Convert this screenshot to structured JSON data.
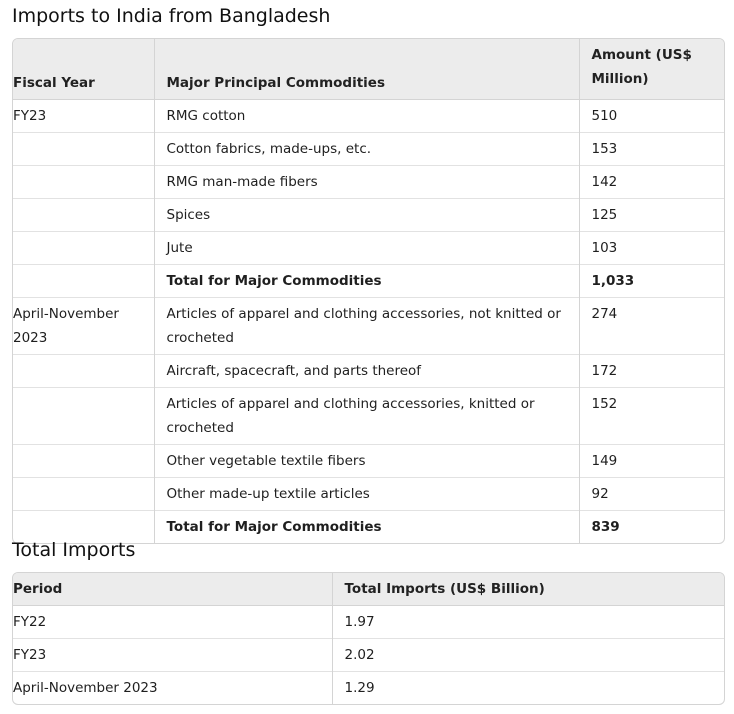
{
  "imports_section": {
    "title": "Imports to India from Bangladesh",
    "headers": [
      "Fiscal Year",
      "Major Principal Commodities",
      "Amount (US$ Million)"
    ],
    "rows": [
      {
        "year": "FY23",
        "commodity": "RMG cotton",
        "amount": "510",
        "total": false
      },
      {
        "year": "",
        "commodity": "Cotton fabrics, made-ups, etc.",
        "amount": "153",
        "total": false
      },
      {
        "year": "",
        "commodity": "RMG man-made fibers",
        "amount": "142",
        "total": false
      },
      {
        "year": "",
        "commodity": "Spices",
        "amount": "125",
        "total": false
      },
      {
        "year": "",
        "commodity": "Jute",
        "amount": "103",
        "total": false
      },
      {
        "year": "",
        "commodity": "Total for Major Commodities",
        "amount": "1,033",
        "total": true
      },
      {
        "year": "April-November 2023",
        "commodity": "Articles of apparel and clothing accessories, not knitted or crocheted",
        "amount": "274",
        "total": false
      },
      {
        "year": "",
        "commodity": "Aircraft, spacecraft, and parts thereof",
        "amount": "172",
        "total": false
      },
      {
        "year": "",
        "commodity": "Articles of apparel and clothing accessories, knitted or crocheted",
        "amount": "152",
        "total": false
      },
      {
        "year": "",
        "commodity": "Other vegetable textile fibers",
        "amount": "149",
        "total": false
      },
      {
        "year": "",
        "commodity": "Other made-up textile articles",
        "amount": "92",
        "total": false
      },
      {
        "year": "",
        "commodity": "Total for Major Commodities",
        "amount": "839",
        "total": true
      }
    ]
  },
  "total_section": {
    "title": "Total Imports",
    "headers": [
      "Period",
      "Total Imports (US$ Billion)"
    ],
    "rows": [
      {
        "period": "FY22",
        "total": "1.97"
      },
      {
        "period": "FY23",
        "total": "2.02"
      },
      {
        "period": "April-November 2023",
        "total": "1.29"
      }
    ]
  }
}
